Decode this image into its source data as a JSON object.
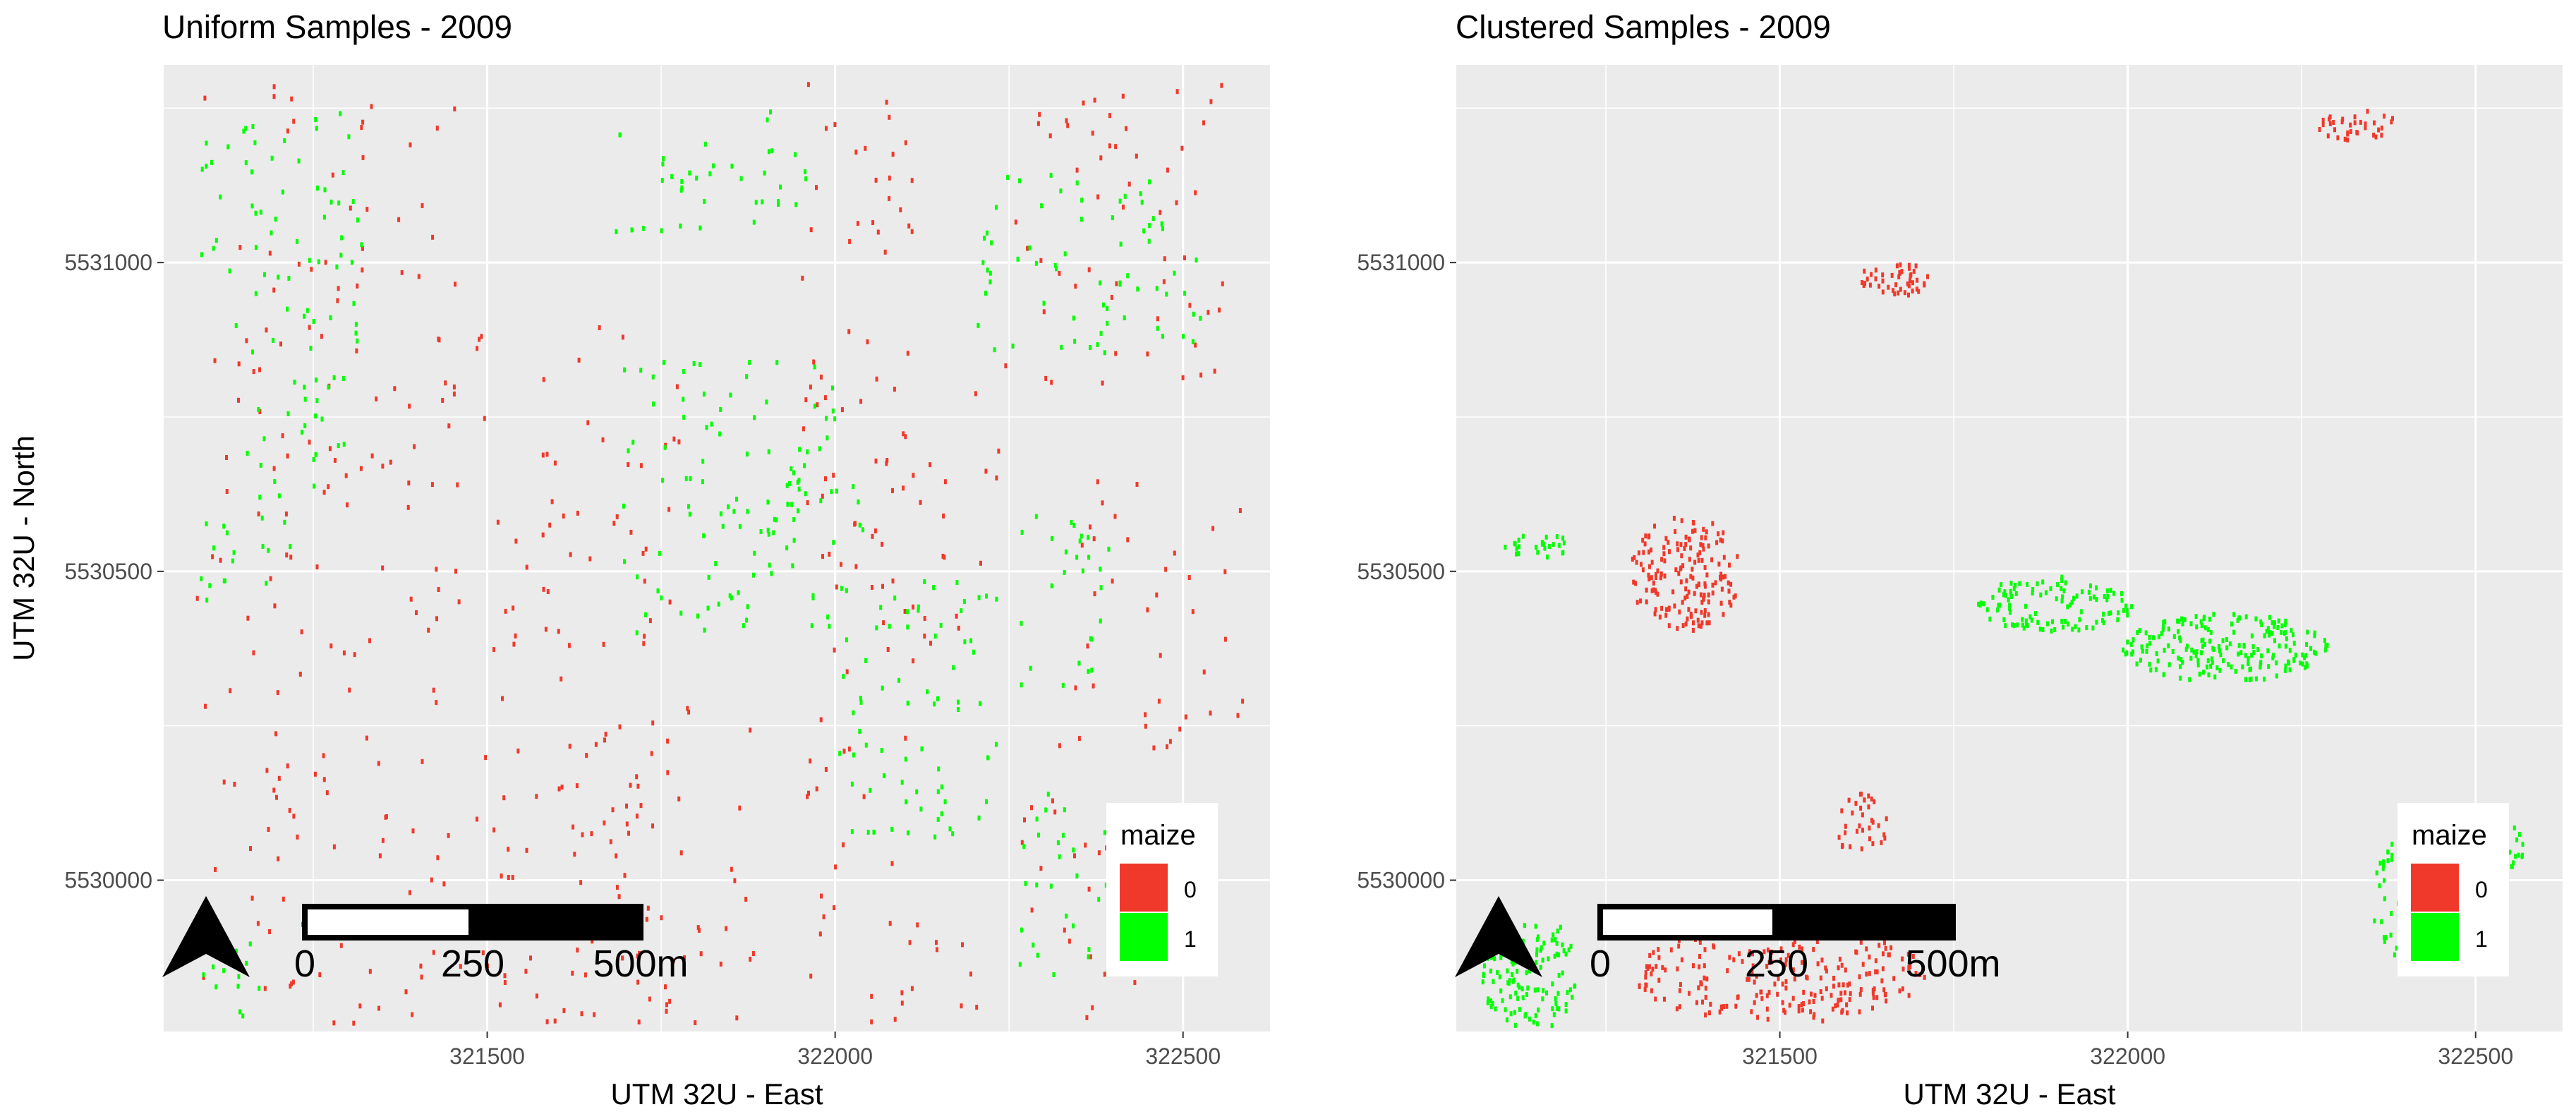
{
  "figure": {
    "panels": [
      {
        "title": "Uniform Samples - 2009",
        "x_label": "UTM 32U - East",
        "y_label": "UTM 32U - North"
      },
      {
        "title": "Clustered Samples - 2009",
        "x_label": "UTM 32U - East",
        "y_label": ""
      }
    ],
    "legend": {
      "title": "maize",
      "items": [
        {
          "label": "0",
          "color": "#F0392B"
        },
        {
          "label": "1",
          "color": "#00FF00"
        }
      ]
    },
    "scalebar": {
      "labels": [
        "0",
        "250",
        "500m"
      ]
    },
    "north_arrow": {
      "icon": "north-arrow-icon"
    },
    "colors": {
      "panel_bg": "#EBEBEB",
      "grid": "#FFFFFF",
      "class_0": "#F0392B",
      "class_1": "#00FF00"
    }
  },
  "chart_data": [
    {
      "type": "scatter",
      "title": "Uniform Samples - 2009",
      "xlabel": "UTM 32U - East",
      "ylabel": "UTM 32U - North",
      "xlim": [
        321035,
        322625
      ],
      "ylim": [
        5529755,
        5531320
      ],
      "xticks": [
        321500,
        322000,
        322500
      ],
      "yticks": [
        5530000,
        5530500,
        5531000
      ],
      "grid": true,
      "legend": {
        "title": "maize",
        "position": "bottom-right"
      },
      "pattern": "uniform",
      "series": [
        {
          "name": "0",
          "color": "#F0392B",
          "regions": [
            [
              321080,
              321460,
              5529770,
              5531300
            ],
            [
              321480,
              321780,
              5529770,
              5530900
            ],
            [
              321600,
              321900,
              5529770,
              5530300
            ],
            [
              321950,
              322110,
              5529770,
              5531300
            ],
            [
              322050,
              322240,
              5530300,
              5530800
            ],
            [
              322050,
              322240,
              5529770,
              5530050
            ],
            [
              322240,
              322600,
              5530800,
              5531300
            ],
            [
              322320,
              322600,
              5530200,
              5530650
            ],
            [
              322260,
              322440,
              5529770,
              5530150
            ]
          ],
          "count": 560
        },
        {
          "name": "1",
          "color": "#00FF00",
          "regions": [
            [
              321080,
              321320,
              5530850,
              5531250
            ],
            [
              321150,
              321300,
              5530600,
              5530850
            ],
            [
              321080,
              321250,
              5530450,
              5530600
            ],
            [
              321680,
              322000,
              5530400,
              5530850
            ],
            [
              321680,
              321960,
              5531050,
              5531250
            ],
            [
              321900,
              322040,
              5530500,
              5530700
            ],
            [
              322000,
              322240,
              5530050,
              5530500
            ],
            [
              322200,
              322540,
              5530850,
              5531150
            ],
            [
              322260,
              322400,
              5530300,
              5530600
            ],
            [
              322260,
              322400,
              5529850,
              5530150
            ],
            [
              321080,
              321200,
              5529770,
              5529950
            ]
          ],
          "count": 460
        }
      ]
    },
    {
      "type": "scatter",
      "title": "Clustered Samples - 2009",
      "xlabel": "UTM 32U - East",
      "xlim": [
        321035,
        322625
      ],
      "ylim": [
        5529755,
        5531320
      ],
      "xticks": [
        321500,
        322000,
        322500
      ],
      "yticks": [
        5530000,
        5530500,
        5531000
      ],
      "grid": true,
      "legend": {
        "title": "maize",
        "position": "bottom-right"
      },
      "pattern": "clustered",
      "series": [
        {
          "name": "0",
          "color": "#F0392B",
          "clusters": [
            {
              "cx": 321362,
              "cy": 5530500,
              "rx": 80,
              "ry": 95,
              "n": 170
            },
            {
              "cx": 321665,
              "cy": 5530975,
              "rx": 55,
              "ry": 28,
              "n": 45
            },
            {
              "cx": 321615,
              "cy": 5530095,
              "rx": 40,
              "ry": 50,
              "n": 35
            },
            {
              "cx": 322330,
              "cy": 5531225,
              "rx": 60,
              "ry": 25,
              "n": 35
            },
            {
              "cx": 321500,
              "cy": 5529850,
              "rx": 210,
              "ry": 80,
              "n": 230
            }
          ]
        },
        {
          "name": "1",
          "color": "#00FF00",
          "clusters": [
            {
              "cx": 321150,
              "cy": 5530545,
              "rx": 50,
              "ry": 20,
              "n": 25
            },
            {
              "cx": 321895,
              "cy": 5530450,
              "rx": 115,
              "ry": 45,
              "n": 110
            },
            {
              "cx": 322140,
              "cy": 5530380,
              "rx": 150,
              "ry": 55,
              "n": 200
            },
            {
              "cx": 321140,
              "cy": 5529850,
              "rx": 70,
              "ry": 100,
              "n": 130
            },
            {
              "cx": 322410,
              "cy": 5529970,
              "rx": 60,
              "ry": 110,
              "n": 85
            },
            {
              "cx": 322540,
              "cy": 5530060,
              "rx": 30,
              "ry": 40,
              "n": 25
            }
          ]
        }
      ]
    }
  ]
}
